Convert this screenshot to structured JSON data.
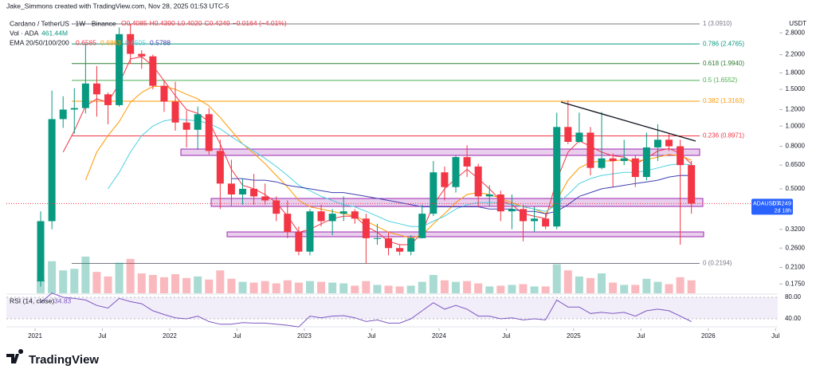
{
  "header": "Jake_Simmons created with TradingView.com, Nov 28, 2025 01:53 UTC-5",
  "chart_data": {
    "type": "candlestick",
    "title": "Cardano / TetherUS · 1W · Binance",
    "ohlc_legend": [
      "O0.4085",
      "H0.4390",
      "L0.4020",
      "C0.4249",
      "−0.0164 (−4.01%)"
    ],
    "volume_label": "Vol · ADA",
    "volume_value": "461.44M",
    "ema_label": "EMA 20/50/100/200",
    "y_unit": "USDT",
    "log_scale": true,
    "up_color": "#089981",
    "down_color": "#f23645",
    "x": [
      "2021-01",
      "2021-02",
      "2021-03",
      "2021-04",
      "2021-05",
      "2021-06",
      "2021-07",
      "2021-08",
      "2021-09",
      "2021-10",
      "2021-11",
      "2021-12",
      "2022-01",
      "2022-02",
      "2022-03",
      "2022-04",
      "2022-05",
      "2022-06",
      "2022-07",
      "2022-08",
      "2022-09",
      "2022-10",
      "2022-11",
      "2022-12",
      "2023-01",
      "2023-02",
      "2023-03",
      "2023-04",
      "2023-05",
      "2023-06",
      "2023-07",
      "2023-08",
      "2023-09",
      "2023-10",
      "2023-11",
      "2023-12",
      "2024-01",
      "2024-02",
      "2024-03",
      "2024-04",
      "2024-05",
      "2024-06",
      "2024-07",
      "2024-08",
      "2024-09",
      "2024-10",
      "2024-11",
      "2024-12",
      "2025-01",
      "2025-02",
      "2025-03",
      "2025-04",
      "2025-05",
      "2025-06",
      "2025-07",
      "2025-08",
      "2025-09",
      "2025-10",
      "2025-11"
    ],
    "open": [
      0.18,
      0.35,
      1.08,
      1.2,
      1.22,
      1.6,
      1.42,
      1.26,
      2.76,
      2.22,
      2.16,
      1.56,
      1.31,
      1.04,
      0.96,
      1.14,
      0.76,
      0.53,
      0.47,
      0.5,
      0.46,
      0.44,
      0.38,
      0.31,
      0.25,
      0.39,
      0.35,
      0.38,
      0.39,
      0.36,
      0.29,
      0.29,
      0.26,
      0.25,
      0.29,
      0.38,
      0.6,
      0.51,
      0.71,
      0.64,
      0.46,
      0.47,
      0.39,
      0.4,
      0.35,
      0.36,
      0.33,
      0.99,
      0.84,
      0.93,
      0.63,
      0.7,
      0.68,
      0.7,
      0.57,
      0.79,
      0.86,
      0.8,
      0.65
    ],
    "high": [
      0.39,
      1.48,
      1.39,
      1.52,
      2.47,
      1.94,
      1.45,
      2.97,
      3.09,
      2.31,
      2.2,
      1.66,
      1.63,
      1.19,
      1.24,
      1.22,
      0.86,
      0.69,
      0.56,
      0.59,
      0.53,
      0.46,
      0.44,
      0.33,
      0.4,
      0.42,
      0.4,
      0.46,
      0.4,
      0.38,
      0.34,
      0.31,
      0.27,
      0.3,
      0.42,
      0.68,
      0.64,
      0.72,
      0.81,
      0.66,
      0.52,
      0.49,
      0.47,
      0.42,
      0.41,
      0.38,
      1.16,
      1.33,
      1.16,
      0.99,
      1.17,
      0.74,
      0.86,
      0.72,
      0.93,
      1.02,
      0.92,
      0.86,
      0.68
    ],
    "low": [
      0.17,
      0.32,
      0.98,
      0.92,
      1.15,
      1.11,
      1.02,
      1.24,
      1.99,
      1.88,
      1.5,
      1.17,
      0.95,
      0.79,
      0.77,
      0.73,
      0.4,
      0.41,
      0.42,
      0.42,
      0.42,
      0.35,
      0.29,
      0.24,
      0.24,
      0.33,
      0.3,
      0.35,
      0.34,
      0.22,
      0.27,
      0.24,
      0.24,
      0.24,
      0.29,
      0.37,
      0.44,
      0.48,
      0.57,
      0.41,
      0.41,
      0.35,
      0.32,
      0.28,
      0.31,
      0.32,
      0.32,
      0.82,
      0.83,
      0.58,
      0.62,
      0.51,
      0.65,
      0.51,
      0.55,
      0.68,
      0.76,
      0.27,
      0.38
    ],
    "close": [
      0.35,
      1.08,
      1.2,
      1.22,
      1.6,
      1.42,
      1.26,
      2.76,
      2.22,
      2.16,
      1.56,
      1.31,
      1.04,
      0.96,
      1.14,
      0.76,
      0.53,
      0.47,
      0.5,
      0.46,
      0.44,
      0.38,
      0.31,
      0.25,
      0.39,
      0.35,
      0.38,
      0.39,
      0.36,
      0.29,
      0.29,
      0.26,
      0.25,
      0.29,
      0.38,
      0.6,
      0.51,
      0.71,
      0.64,
      0.46,
      0.47,
      0.39,
      0.4,
      0.35,
      0.36,
      0.33,
      0.99,
      0.84,
      0.93,
      0.63,
      0.7,
      0.68,
      0.7,
      0.57,
      0.79,
      0.86,
      0.8,
      0.65,
      0.4249
    ],
    "ylim": [
      0.162,
      3.75
    ],
    "yticks": [
      {
        "value": 2.8,
        "label": "2.8000"
      },
      {
        "value": 2.2,
        "label": "2.2000"
      },
      {
        "value": 1.8,
        "label": "1.8000"
      },
      {
        "value": 1.5,
        "label": "1.5000"
      },
      {
        "value": 1.2,
        "label": "1.2000"
      },
      {
        "value": 1.0,
        "label": "1.0000"
      },
      {
        "value": 0.8,
        "label": "0.8000"
      },
      {
        "value": 0.65,
        "label": "0.6500"
      },
      {
        "value": 0.5,
        "label": "0.5000"
      },
      {
        "value": 0.32,
        "label": "0.3200"
      },
      {
        "value": 0.26,
        "label": "0.2600"
      },
      {
        "value": 0.21,
        "label": "0.2100"
      },
      {
        "value": 0.175,
        "label": "0.1750"
      }
    ],
    "xticks": [
      {
        "value": "2021-01",
        "label": "2021"
      },
      {
        "value": "2021-07",
        "label": "Jul"
      },
      {
        "value": "2022-01",
        "label": "2022"
      },
      {
        "value": "2022-07",
        "label": "Jul"
      },
      {
        "value": "2023-01",
        "label": "2023"
      },
      {
        "value": "2023-07",
        "label": "Jul"
      },
      {
        "value": "2024-01",
        "label": "2024"
      },
      {
        "value": "2024-07",
        "label": "Jul"
      },
      {
        "value": "2025-01",
        "label": "2025"
      },
      {
        "value": "2025-07",
        "label": "Jul"
      },
      {
        "value": "2026-01",
        "label": "2026"
      },
      {
        "value": "2026-07",
        "label": "Jul"
      }
    ],
    "series": [
      {
        "name": "EMA 20",
        "color": "#f23645",
        "values": [
          null,
          null,
          0.75,
          0.95,
          1.25,
          1.35,
          1.3,
          1.6,
          2.1,
          2.15,
          1.95,
          1.65,
          1.4,
          1.2,
          1.15,
          1.05,
          0.82,
          0.62,
          0.52,
          0.5,
          0.47,
          0.43,
          0.37,
          0.31,
          0.32,
          0.34,
          0.36,
          0.37,
          0.37,
          0.33,
          0.31,
          0.28,
          0.27,
          0.27,
          0.31,
          0.42,
          0.5,
          0.56,
          0.62,
          0.56,
          0.5,
          0.44,
          0.42,
          0.38,
          0.37,
          0.36,
          0.55,
          0.75,
          0.85,
          0.8,
          0.75,
          0.72,
          0.71,
          0.66,
          0.7,
          0.76,
          0.78,
          0.74,
          0.6585
        ]
      },
      {
        "name": "EMA 50",
        "color": "#ff9800",
        "values": [
          null,
          null,
          null,
          null,
          0.55,
          0.75,
          0.9,
          1.05,
          1.3,
          1.45,
          1.55,
          1.55,
          1.5,
          1.42,
          1.35,
          1.25,
          1.1,
          0.95,
          0.82,
          0.74,
          0.66,
          0.58,
          0.51,
          0.44,
          0.41,
          0.4,
          0.39,
          0.38,
          0.37,
          0.35,
          0.33,
          0.31,
          0.3,
          0.29,
          0.3,
          0.34,
          0.38,
          0.43,
          0.47,
          0.48,
          0.47,
          0.45,
          0.43,
          0.41,
          0.4,
          0.38,
          0.44,
          0.55,
          0.63,
          0.67,
          0.68,
          0.68,
          0.69,
          0.68,
          0.69,
          0.71,
          0.73,
          0.72,
          0.6863
        ]
      },
      {
        "name": "EMA 100",
        "color": "#4dd0e1",
        "values": [
          null,
          null,
          null,
          null,
          null,
          null,
          0.5,
          0.6,
          0.75,
          0.9,
          1.0,
          1.06,
          1.08,
          1.07,
          1.06,
          1.03,
          0.97,
          0.89,
          0.82,
          0.76,
          0.7,
          0.64,
          0.58,
          0.52,
          0.49,
          0.46,
          0.44,
          0.42,
          0.41,
          0.39,
          0.37,
          0.35,
          0.34,
          0.33,
          0.33,
          0.35,
          0.37,
          0.4,
          0.42,
          0.43,
          0.43,
          0.43,
          0.42,
          0.41,
          0.4,
          0.39,
          0.42,
          0.47,
          0.53,
          0.56,
          0.58,
          0.59,
          0.6,
          0.6,
          0.61,
          0.63,
          0.65,
          0.66,
          0.6505
        ]
      },
      {
        "name": "EMA 200",
        "color": "#3f3fb5",
        "values": [
          null,
          null,
          null,
          null,
          null,
          null,
          null,
          null,
          null,
          null,
          null,
          null,
          null,
          null,
          null,
          null,
          null,
          0.56,
          0.56,
          0.55,
          0.55,
          0.54,
          0.52,
          0.51,
          0.5,
          0.49,
          0.48,
          0.48,
          0.47,
          0.46,
          0.45,
          0.44,
          0.43,
          0.42,
          0.41,
          0.41,
          0.41,
          0.41,
          0.41,
          0.41,
          0.4,
          0.4,
          0.4,
          0.39,
          0.39,
          0.38,
          0.39,
          0.42,
          0.46,
          0.48,
          0.5,
          0.51,
          0.52,
          0.53,
          0.54,
          0.55,
          0.57,
          0.58,
          0.5788
        ]
      }
    ],
    "levels": [
      {
        "value": 3.091,
        "label": "1 (3.0910)",
        "color": "#787b86"
      },
      {
        "value": 2.4765,
        "label": "0.786 (2.4765)",
        "color": "#089981"
      },
      {
        "value": 1.994,
        "label": "0.618 (1.9940)",
        "color": "#2e7d32"
      },
      {
        "value": 1.6552,
        "label": "0.5 (1.6552)",
        "color": "#4caf50"
      },
      {
        "value": 1.3163,
        "label": "0.382 (1.3163)",
        "color": "#ff9800"
      },
      {
        "value": 0.8971,
        "label": "0.236 (0.8971)",
        "color": "#f23645"
      },
      {
        "value": 0.2194,
        "label": "0 (0.2194)",
        "color": "#787b86"
      }
    ],
    "price_tag": {
      "symbol": "ADAUSDT",
      "countdown": "2d 18h",
      "color": "#2962ff"
    },
    "volume": {
      "vlim": [
        0,
        5000
      ],
      "values": [
        1800,
        4200,
        3000,
        3200,
        4800,
        2800,
        2200,
        4000,
        4500,
        2600,
        2400,
        2100,
        2500,
        2000,
        2200,
        1800,
        3000,
        1900,
        1500,
        1400,
        1600,
        1300,
        1700,
        1400,
        1600,
        1500,
        1400,
        1300,
        1000,
        1600,
        1100,
        1000,
        900,
        1000,
        1500,
        2400,
        1700,
        1500,
        1600,
        1300,
        900,
        1000,
        1100,
        1200,
        900,
        900,
        3800,
        3000,
        2200,
        2000,
        2600,
        1400,
        1100,
        1100,
        1900,
        1500,
        1200,
        2100,
        1700
      ]
    },
    "rsi": {
      "label": "RSI (14, close)",
      "color": "#7e57c2",
      "ylim": [
        24,
        86
      ],
      "yticks": [
        {
          "value": 80,
          "label": "80.00"
        },
        {
          "value": 40,
          "label": "40.00"
        }
      ],
      "values": [
        70,
        88,
        80,
        78,
        75,
        65,
        60,
        78,
        72,
        68,
        55,
        48,
        42,
        40,
        45,
        35,
        30,
        30,
        33,
        32,
        32,
        30,
        28,
        25,
        45,
        42,
        45,
        46,
        42,
        35,
        38,
        32,
        32,
        40,
        55,
        70,
        58,
        65,
        58,
        45,
        45,
        40,
        42,
        38,
        40,
        38,
        75,
        62,
        62,
        50,
        52,
        50,
        52,
        45,
        55,
        58,
        55,
        45,
        34.83
      ]
    }
  },
  "footer": {
    "logo": "TradingView"
  }
}
